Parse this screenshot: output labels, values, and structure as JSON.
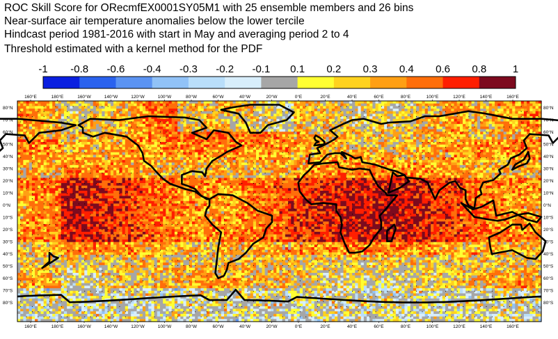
{
  "title_lines": [
    "ROC Skill Score for ORecmfEX0001SY05M1 with 25 ensemble members and 26 bins",
    "Near-surface air temperature anomalies below the lower tercile",
    "Hindcast period 1981-2016 with start in May and averaging period  2 to  4",
    "Threshold estimated with a kernel method for the PDF"
  ],
  "colorbar": {
    "labels": [
      "-1",
      "-0.8",
      "-0.6",
      "-0.4",
      "-0.3",
      "-0.2",
      "-0.1",
      "0.1",
      "0.2",
      "0.3",
      "0.4",
      "0.6",
      "0.8",
      "1"
    ],
    "colors": [
      "#0a1fe0",
      "#2a62ee",
      "#5b93f2",
      "#91c2f7",
      "#b9defa",
      "#d8eefb",
      "#a6a6a6",
      "#ffff32",
      "#ffd21e",
      "#ff9f14",
      "#ff6e0a",
      "#ff1e00",
      "#7d0a1e"
    ]
  },
  "map": {
    "top_lon_labels": [
      "160°E",
      "180°E",
      "160°W",
      "140°W",
      "120°W",
      "100°W",
      "80°W",
      "60°W",
      "40°W",
      "20°W",
      "0°E",
      "20°E",
      "40°E",
      "60°E",
      "80°E",
      "100°E",
      "120°E",
      "140°E",
      "160°E"
    ],
    "bottom_lon_labels": [
      "160°E",
      "180°E",
      "160°W",
      "140°W",
      "120°W",
      "100°W",
      "80°W",
      "60°W",
      "40°W",
      "20°W",
      "0°E",
      "20°E",
      "40°E",
      "60°E",
      "80°E",
      "100°E",
      "120°E",
      "140°E",
      "160°E"
    ],
    "lat_labels": [
      "80°N",
      "70°N",
      "60°N",
      "50°N",
      "40°N",
      "30°N",
      "20°N",
      "10°N",
      "0°N",
      "10°S",
      "20°S",
      "30°S",
      "40°S",
      "50°S",
      "60°S",
      "70°S",
      "80°S"
    ]
  }
}
